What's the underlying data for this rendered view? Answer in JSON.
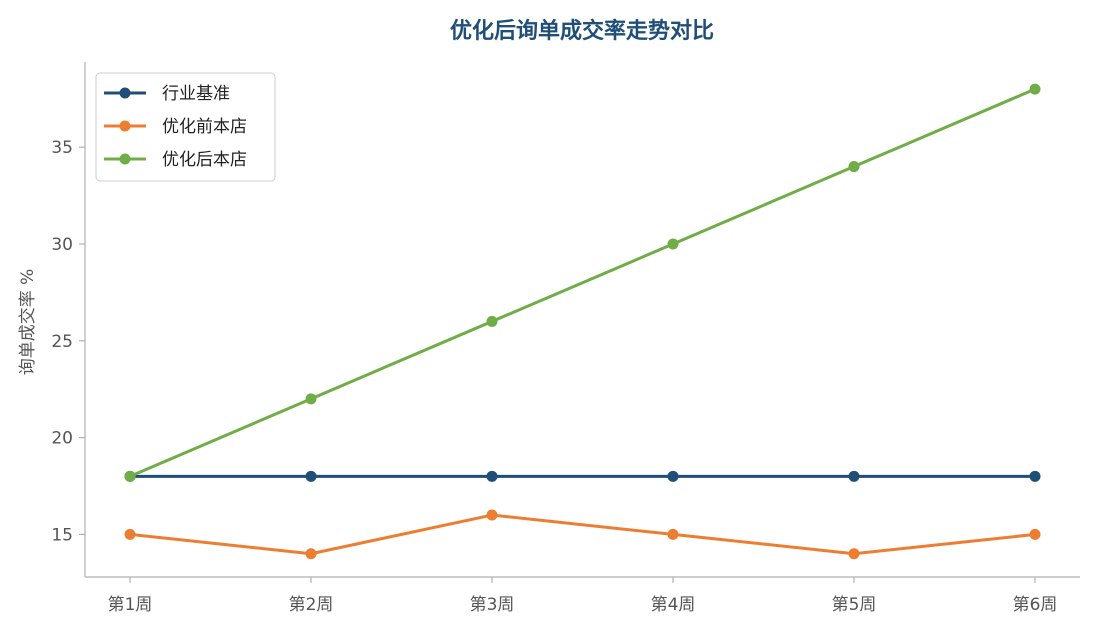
{
  "chart_data": {
    "type": "line",
    "title": "优化后询单成交率走势对比",
    "xlabel": "",
    "ylabel": "询单成交率 %",
    "categories": [
      "第1周",
      "第2周",
      "第3周",
      "第4周",
      "第5周",
      "第6周"
    ],
    "series": [
      {
        "name": "行业基准",
        "color": "#1f4e79",
        "values": [
          18,
          18,
          18,
          18,
          18,
          18
        ]
      },
      {
        "name": "优化前本店",
        "color": "#ed7d31",
        "values": [
          15,
          14,
          16,
          15,
          14,
          15
        ]
      },
      {
        "name": "优化后本店",
        "color": "#70ad47",
        "values": [
          18,
          22,
          26,
          30,
          34,
          38
        ]
      }
    ],
    "ylim": [
      12.8,
      39.4
    ],
    "yticks": [
      15,
      20,
      25,
      30,
      35
    ],
    "grid": false,
    "legend": "top-left"
  }
}
